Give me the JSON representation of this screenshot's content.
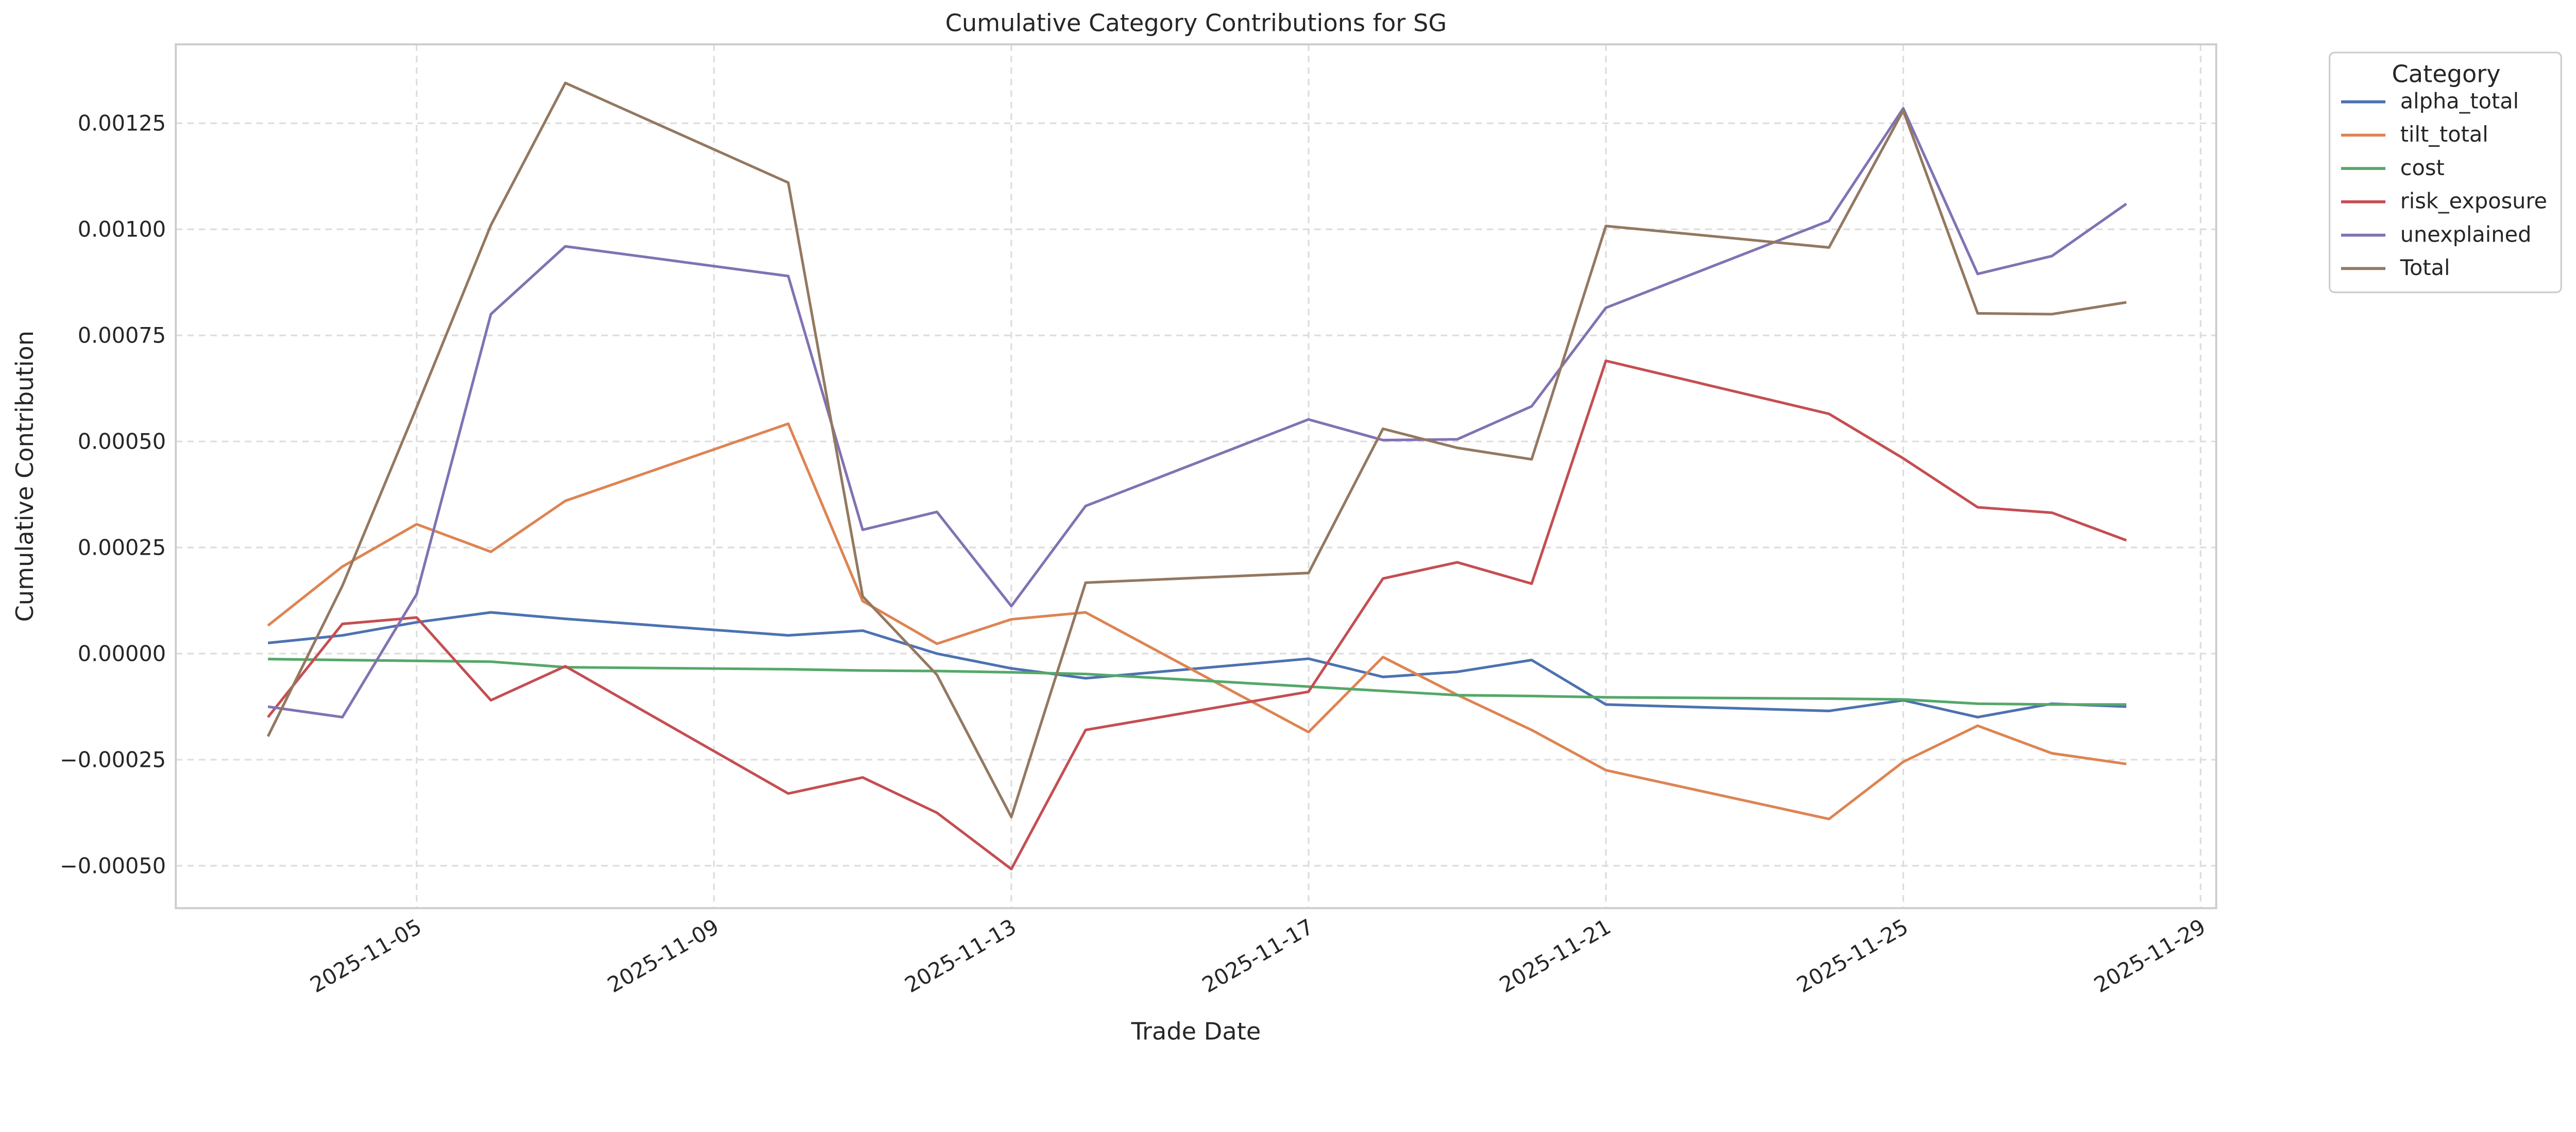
{
  "chart_data": {
    "type": "line",
    "title": "Cumulative Category Contributions for SG",
    "xlabel": "Trade Date",
    "ylabel": "Cumulative Contribution",
    "x": [
      "2025-11-03",
      "2025-11-04",
      "2025-11-05",
      "2025-11-06",
      "2025-11-07",
      "2025-11-10",
      "2025-11-11",
      "2025-11-12",
      "2025-11-13",
      "2025-11-14",
      "2025-11-17",
      "2025-11-18",
      "2025-11-19",
      "2025-11-20",
      "2025-11-21",
      "2025-11-24",
      "2025-11-25",
      "2025-11-26",
      "2025-11-27",
      "2025-11-28"
    ],
    "xticks": [
      "2025-11-05",
      "2025-11-09",
      "2025-11-13",
      "2025-11-17",
      "2025-11-21",
      "2025-11-25",
      "2025-11-29"
    ],
    "yticks": [
      "−0.00050",
      "−0.00025",
      "0.00000",
      "0.00025",
      "0.00050",
      "0.00075",
      "0.00100",
      "0.00125"
    ],
    "ytick_values": [
      -0.0005,
      -0.00025,
      0,
      0.00025,
      0.0005,
      0.00075,
      0.001,
      0.00125
    ],
    "ylim": [
      -0.0006,
      0.001436
    ],
    "xlim_days": [
      1.76,
      29.21
    ],
    "grid": true,
    "legend_title": "Category",
    "legend_position": "outside-top-right",
    "series": [
      {
        "name": "alpha_total",
        "color": "#4c72b0",
        "values": [
          2.5e-05,
          4.3e-05,
          7.4e-05,
          9.7e-05,
          8.2e-05,
          4.3e-05,
          5.4e-05,
          0.0,
          -3.5e-05,
          -5.8e-05,
          -1.2e-05,
          -5.5e-05,
          -4.3e-05,
          -1.5e-05,
          -0.00012,
          -0.000135,
          -0.00011,
          -0.00015,
          -0.000118,
          -0.000125
        ]
      },
      {
        "name": "tilt_total",
        "color": "#dd8452",
        "values": [
          6.6e-05,
          0.000205,
          0.000305,
          0.00024,
          0.00036,
          0.000542,
          0.000124,
          2.3e-05,
          8.1e-05,
          9.7e-05,
          -0.000185,
          -8e-06,
          -9.7e-05,
          -0.00018,
          -0.000275,
          -0.00039,
          -0.000255,
          -0.00017,
          -0.000235,
          -0.00026
        ]
      },
      {
        "name": "cost",
        "color": "#55a868",
        "values": [
          -1.3e-05,
          -1.5e-05,
          -1.7e-05,
          -1.9e-05,
          -3.2e-05,
          -3.7e-05,
          -4e-05,
          -4.1e-05,
          -4.4e-05,
          -4.8e-05,
          -7.8e-05,
          -8.8e-05,
          -9.8e-05,
          -0.0001,
          -0.000103,
          -0.000106,
          -0.000108,
          -0.000118,
          -0.00012,
          -0.00012
        ]
      },
      {
        "name": "risk_exposure",
        "color": "#c44e52",
        "values": [
          -0.00015,
          7e-05,
          8.5e-05,
          -0.00011,
          -3e-05,
          -0.00033,
          -0.000292,
          -0.000375,
          -0.000508,
          -0.00018,
          -9e-05,
          0.000177,
          0.000215,
          0.000165,
          0.00069,
          0.000565,
          0.00046,
          0.000345,
          0.000332,
          0.000267
        ]
      },
      {
        "name": "unexplained",
        "color": "#8172b3",
        "values": [
          -0.000125,
          -0.00015,
          0.00014,
          0.0008,
          0.00096,
          0.00089,
          0.000292,
          0.000334,
          0.000112,
          0.000348,
          0.000552,
          0.000503,
          0.000505,
          0.000583,
          0.000815,
          0.00102,
          0.001285,
          0.000895,
          0.000937,
          0.00106
        ]
      },
      {
        "name": "Total",
        "color": "#937860",
        "values": [
          -0.000195,
          0.00016,
          0.00058,
          0.00101,
          0.001345,
          0.00111,
          0.000135,
          -5e-05,
          -0.000385,
          0.000167,
          0.00019,
          0.00053,
          0.000485,
          0.000458,
          0.001008,
          0.000957,
          0.00128,
          0.000802,
          0.0008,
          0.000828
        ]
      }
    ]
  }
}
